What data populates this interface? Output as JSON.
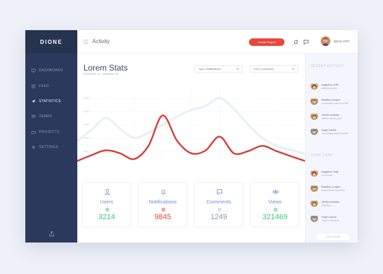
{
  "brand": {
    "logo": "DIONE"
  },
  "sidebar": {
    "items": [
      {
        "label": "DASHBOARD",
        "icon": "monitor-icon",
        "active": false
      },
      {
        "label": "FEED",
        "icon": "feed-icon",
        "active": false
      },
      {
        "label": "STATISTICS",
        "icon": "send-icon",
        "active": true
      },
      {
        "label": "TEAMS",
        "icon": "teams-icon",
        "active": false
      },
      {
        "label": "PROJECTS",
        "icon": "folder-icon",
        "active": false
      },
      {
        "label": "SETTINGS",
        "icon": "gear-icon",
        "active": false
      }
    ],
    "bottom_icon": "export-icon"
  },
  "header": {
    "title": "Activity",
    "create_button": "Create Project",
    "user_name": "BRAD PITT"
  },
  "main": {
    "title": "Lorem Stats",
    "date_range": "September 15 - September 30",
    "type_select": "Type: Notifications",
    "sort_select": "Sort: Comments",
    "y_ticks": [
      "2500",
      "2000",
      "1500",
      "1000",
      "500"
    ]
  },
  "chart_data": {
    "type": "line",
    "title": "",
    "xlabel": "",
    "ylabel": "",
    "ylim": [
      0,
      3000
    ],
    "x": [
      0,
      1,
      2,
      3,
      4,
      5,
      6,
      7,
      8,
      9,
      10,
      11,
      12,
      13,
      14,
      15,
      16
    ],
    "series": [
      {
        "color": "#d63a34",
        "values": [
          130,
          350,
          530,
          420,
          200,
          700,
          1850,
          900,
          420,
          520,
          1050,
          420,
          500,
          700,
          500,
          310,
          130
        ]
      },
      {
        "color": "#e8edf8",
        "values": [
          900,
          1300,
          1750,
          1350,
          1000,
          1200,
          1500,
          1800,
          2050,
          2200,
          2500,
          2100,
          1500,
          1000,
          700,
          550,
          400
        ]
      }
    ]
  },
  "cards": [
    {
      "label": "Users",
      "value": "3214",
      "icon": "user-icon",
      "dot_icon": "dot-icon",
      "value_color": "#3cc47c",
      "dot_color": "#3cc47c"
    },
    {
      "label": "Notifications",
      "value": "9845",
      "icon": "bell-icon",
      "dot_icon": "dot-icon",
      "value_color": "#e8463b",
      "dot_color": "#e8463b"
    },
    {
      "label": "Comments",
      "value": "1249",
      "icon": "comment-icon",
      "dot_icon": "dot-icon",
      "value_color": "#8d96ae",
      "dot_color": "#b7bdcf"
    },
    {
      "label": "Views",
      "value": "321469",
      "icon": "eye-icon",
      "dot_icon": "dot-icon",
      "value_color": "#3cc47c",
      "dot_color": "#3cc47c"
    }
  ],
  "right": {
    "recent_title": "RECENT ACTIVITY",
    "recent": [
      {
        "name": "Angelina Jolie",
        "sub": "Added post link"
      },
      {
        "name": "Bradley Cooper",
        "sub": "commented post for profile"
      },
      {
        "name": "Jenifer Aniston",
        "sub": "started following you"
      },
      {
        "name": "Hugh Laurie",
        "sub": "commented post for profile"
      }
    ],
    "team_title": "YOUR TEAM",
    "team": [
      {
        "name": "Angelina Jolie",
        "sub": "Co-founder"
      },
      {
        "name": "Bradley Cooper",
        "sub": "Social Media Specialist"
      },
      {
        "name": "Jenifer Aniston",
        "sub": "Developer"
      },
      {
        "name": "Hugh Laurie",
        "sub": "Graphic Designer"
      }
    ],
    "view_more": "VIEW MORE"
  },
  "colors": {
    "accent": "#e8463b",
    "sidebar": "#2b3a5c",
    "positive": "#3cc47c",
    "label_blue": "#6c8ed8"
  }
}
